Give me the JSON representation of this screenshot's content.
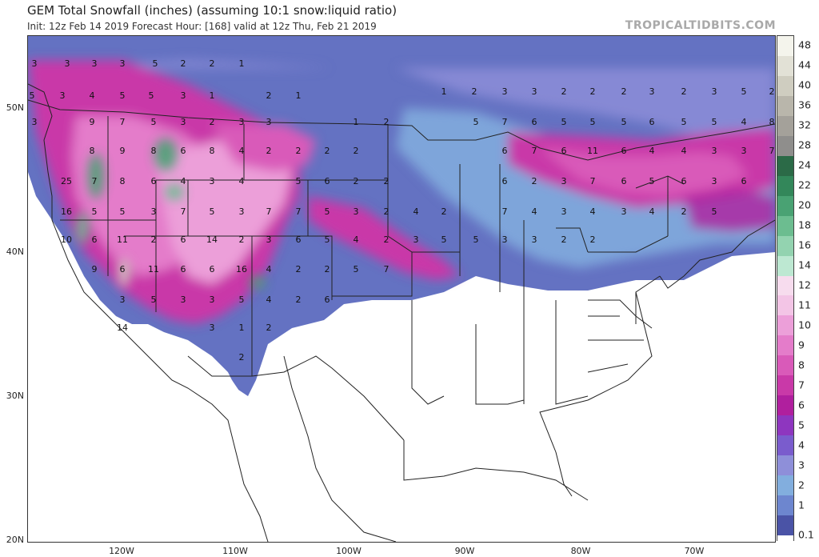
{
  "header": {
    "title": "GEM Total Snowfall (inches) (assuming 10:1 snow:liquid ratio)",
    "subtitle": "Init: 12z Feb 14 2019   Forecast Hour: [168]   valid at 12z Thu, Feb 21 2019",
    "watermark": "TROPICALTIDBITS.COM"
  },
  "axes": {
    "lat_labels": [
      "50N",
      "40N",
      "30N",
      "20N"
    ],
    "lon_labels": [
      "120W",
      "110W",
      "100W",
      "90W",
      "80W",
      "70W"
    ]
  },
  "legend": {
    "labels": [
      "48",
      "44",
      "40",
      "36",
      "32",
      "28",
      "24",
      "22",
      "20",
      "18",
      "16",
      "14",
      "12",
      "11",
      "10",
      "9",
      "8",
      "7",
      "6",
      "5",
      "4",
      "3",
      "2",
      "1",
      "0.1"
    ],
    "colors": [
      "#f4f4ec",
      "#e2e1d6",
      "#cfcdc0",
      "#b9b6ab",
      "#a4a19a",
      "#8f8e8c",
      "#2b6a47",
      "#33875a",
      "#49a273",
      "#6cbd90",
      "#93d3b0",
      "#bde8d2",
      "#f7dcee",
      "#f3c5e6",
      "#ec9fd9",
      "#e47cca",
      "#d95ab9",
      "#c939a8",
      "#b01f9e",
      "#8e36bf",
      "#7a5ccd",
      "#8e8fd9",
      "#82aede",
      "#6d86cf",
      "#4a53a6"
    ],
    "bottom_color": "#ffffff"
  },
  "map": {
    "snow_values": [
      "3",
      "3",
      "3",
      "3",
      "5",
      "2",
      "2",
      "1",
      "5",
      "3",
      "4",
      "5",
      "5",
      "3",
      "1",
      "2",
      "1",
      "3",
      "9",
      "7",
      "5",
      "3",
      "2",
      "3",
      "3",
      "1",
      "2",
      "8",
      "9",
      "8",
      "6",
      "8",
      "4",
      "2",
      "2",
      "2",
      "2",
      "25",
      "7",
      "8",
      "6",
      "4",
      "3",
      "4",
      "5",
      "6",
      "2",
      "2",
      "16",
      "5",
      "5",
      "3",
      "7",
      "5",
      "3",
      "7",
      "7",
      "5",
      "3",
      "2",
      "10",
      "6",
      "11",
      "2",
      "6",
      "14",
      "2",
      "3",
      "6",
      "5",
      "4",
      "2",
      "9",
      "6",
      "11",
      "6",
      "6",
      "16",
      "4",
      "2",
      "2",
      "5",
      "7",
      "3",
      "5",
      "3",
      "3",
      "5",
      "4",
      "2",
      "6",
      "14",
      "3",
      "1",
      "2",
      "2",
      "1",
      "2",
      "3",
      "3",
      "2",
      "2",
      "2",
      "3",
      "2",
      "3",
      "5",
      "2",
      "5",
      "7",
      "6",
      "5",
      "5",
      "5",
      "6",
      "5",
      "5",
      "4",
      "8",
      "6",
      "7",
      "6",
      "11",
      "6",
      "4",
      "4",
      "3",
      "3",
      "7",
      "6",
      "2",
      "3",
      "7",
      "6",
      "5",
      "6",
      "3",
      "6",
      "7",
      "4",
      "3",
      "4",
      "3",
      "4",
      "2",
      "5",
      "5",
      "3",
      "3",
      "2",
      "2",
      "4",
      "3",
      "2",
      "5",
      "4",
      "3",
      "3",
      "3",
      "3",
      "5",
      "4",
      "2",
      "2",
      "2",
      "2",
      "2",
      "1",
      "2"
    ]
  }
}
